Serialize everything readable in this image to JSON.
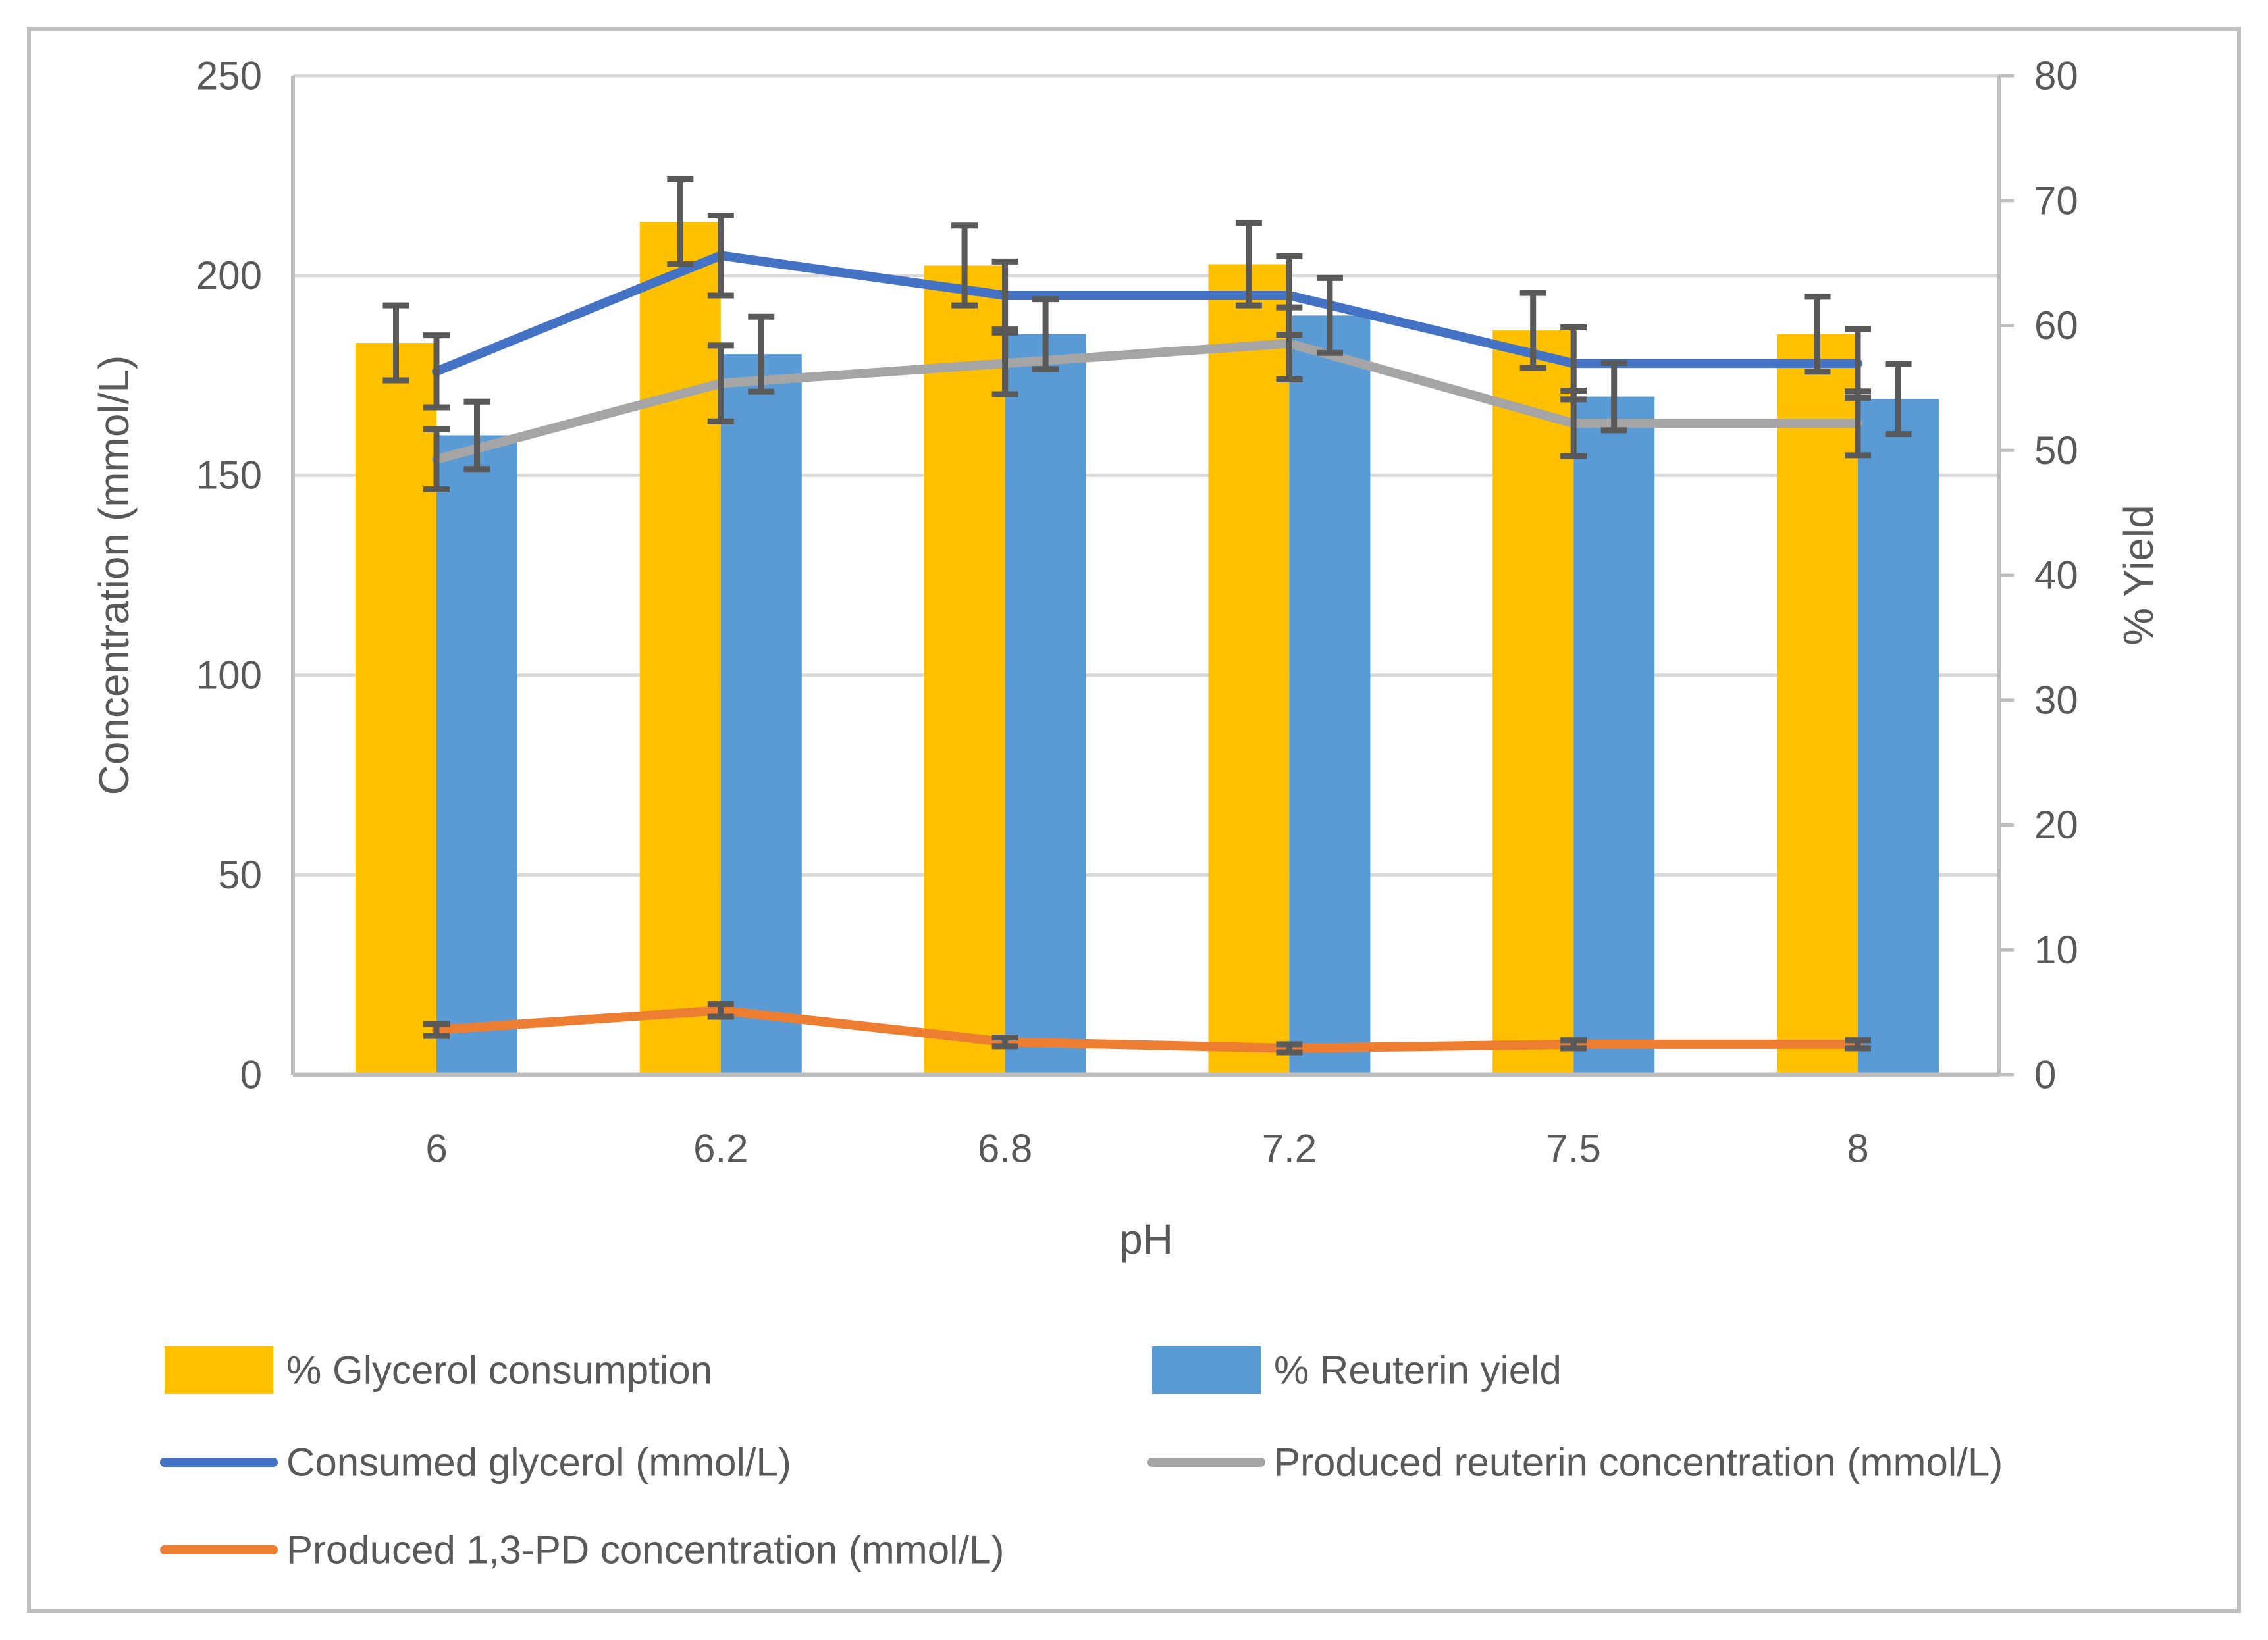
{
  "chart_data": {
    "type": "bar",
    "subtype": "combo-bar-line-dual-axis",
    "title": "",
    "categories": [
      "6",
      "6.2",
      "6.8",
      "7.2",
      "7.5",
      "8"
    ],
    "x_axis": {
      "title": "pH"
    },
    "left_axis": {
      "title": "Concentration (mmol/L)",
      "range": [
        0,
        250
      ],
      "ticks": [
        0,
        50,
        100,
        150,
        200,
        250
      ]
    },
    "right_axis": {
      "title": "% Yield",
      "range": [
        0,
        80
      ],
      "ticks": [
        0,
        10,
        20,
        30,
        40,
        50,
        60,
        70,
        80
      ]
    },
    "grid": true,
    "legend_position": "bottom",
    "series": [
      {
        "id": "glycerol_consumption",
        "name": "% Glycerol consumption",
        "type": "bar",
        "axis": "right",
        "color": "#FFC000",
        "values": [
          58.6,
          68.3,
          64.8,
          64.9,
          59.6,
          59.3
        ],
        "errors": [
          3.0,
          3.4,
          3.2,
          3.3,
          3.0,
          3.0
        ]
      },
      {
        "id": "reuterin_yield",
        "name": "% Reuterin yield",
        "type": "bar",
        "axis": "right",
        "color": "#5B9BD5",
        "values": [
          51.2,
          57.7,
          59.3,
          60.8,
          54.3,
          54.1
        ],
        "errors": [
          2.7,
          3.0,
          2.8,
          3.0,
          2.7,
          2.8
        ]
      },
      {
        "id": "consumed_glycerol",
        "name": "Consumed glycerol (mmol/L)",
        "type": "line",
        "axis": "left",
        "color": "#4472C4",
        "values": [
          176,
          205,
          195,
          195,
          178,
          178
        ],
        "errors": [
          9,
          10,
          8.5,
          9.8,
          9,
          8.6
        ]
      },
      {
        "id": "produced_reuterin",
        "name": "Produced reuterin concentration (mmol/L)",
        "type": "line",
        "axis": "left",
        "color": "#A5A5A5",
        "values": [
          154,
          173,
          178,
          183,
          163,
          163
        ],
        "errors": [
          7.5,
          9.5,
          7.7,
          9.0,
          8.2,
          8.0
        ]
      },
      {
        "id": "produced_13pd",
        "name": "Produced 1,3-PD concentration (mmol/L)",
        "type": "line",
        "axis": "left",
        "color": "#ED7D31",
        "values": [
          11.2,
          16.1,
          8.2,
          6.6,
          7.6,
          7.6
        ],
        "errors": [
          1.5,
          1.6,
          1.1,
          1.0,
          1.0,
          1.0
        ]
      }
    ]
  },
  "colors": {
    "error_bar": "#595959",
    "gridline": "#D9D9D9",
    "axis_line": "#BFBFBF",
    "text": "#595959",
    "frame_border": "#BFBFBF",
    "background": "#FFFFFF"
  }
}
